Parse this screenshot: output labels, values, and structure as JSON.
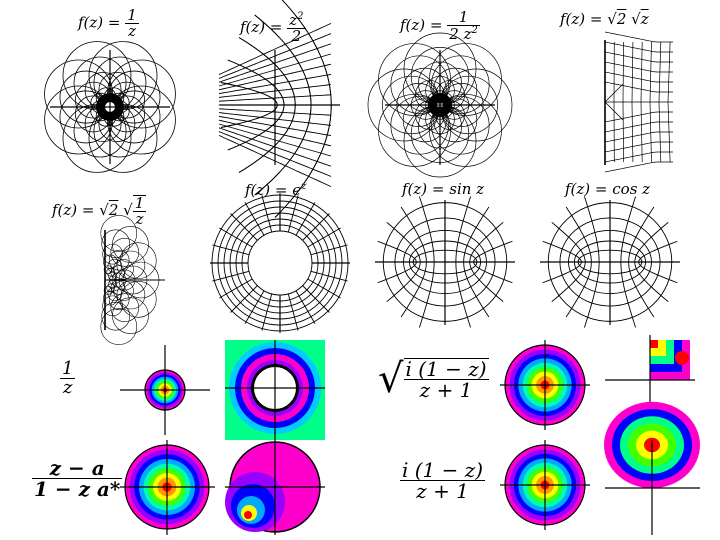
{
  "panels": [
    {
      "label_prefix": "f(z) = ",
      "num": "1",
      "den": "z"
    },
    {
      "label_prefix": "f(z) = ",
      "num": "z2",
      "den": "2"
    },
    {
      "label_prefix": "f(z) = ",
      "num": "1",
      "den": "2 z2"
    },
    {
      "label_prefix": "f(z) = ",
      "sqrt_a": "2",
      "sqrt_b": "z"
    },
    {
      "label_prefix": "f(z) = ",
      "sqrt_a": "2",
      "num": "1",
      "den": "z"
    },
    {
      "label": "f(z) = ez"
    },
    {
      "label": "f(z) = sin z"
    },
    {
      "label": "f(z) = cos z"
    }
  ],
  "lower": {
    "left_top": {
      "num": "1",
      "den": "z"
    },
    "left_bottom": {
      "num": "z − a",
      "den": "1 − z a*"
    },
    "right_top": {
      "num": "i (1 − z)",
      "den": "z + 1"
    },
    "right_bottom": {
      "num": "i (1 − z)",
      "den": "z + 1"
    }
  },
  "colors": {
    "rainbow": [
      "#ff00cc",
      "#9900ff",
      "#0000ff",
      "#00aaff",
      "#00ffaa",
      "#44ff00",
      "#ffff00",
      "#ff9900",
      "#ff0000"
    ]
  }
}
